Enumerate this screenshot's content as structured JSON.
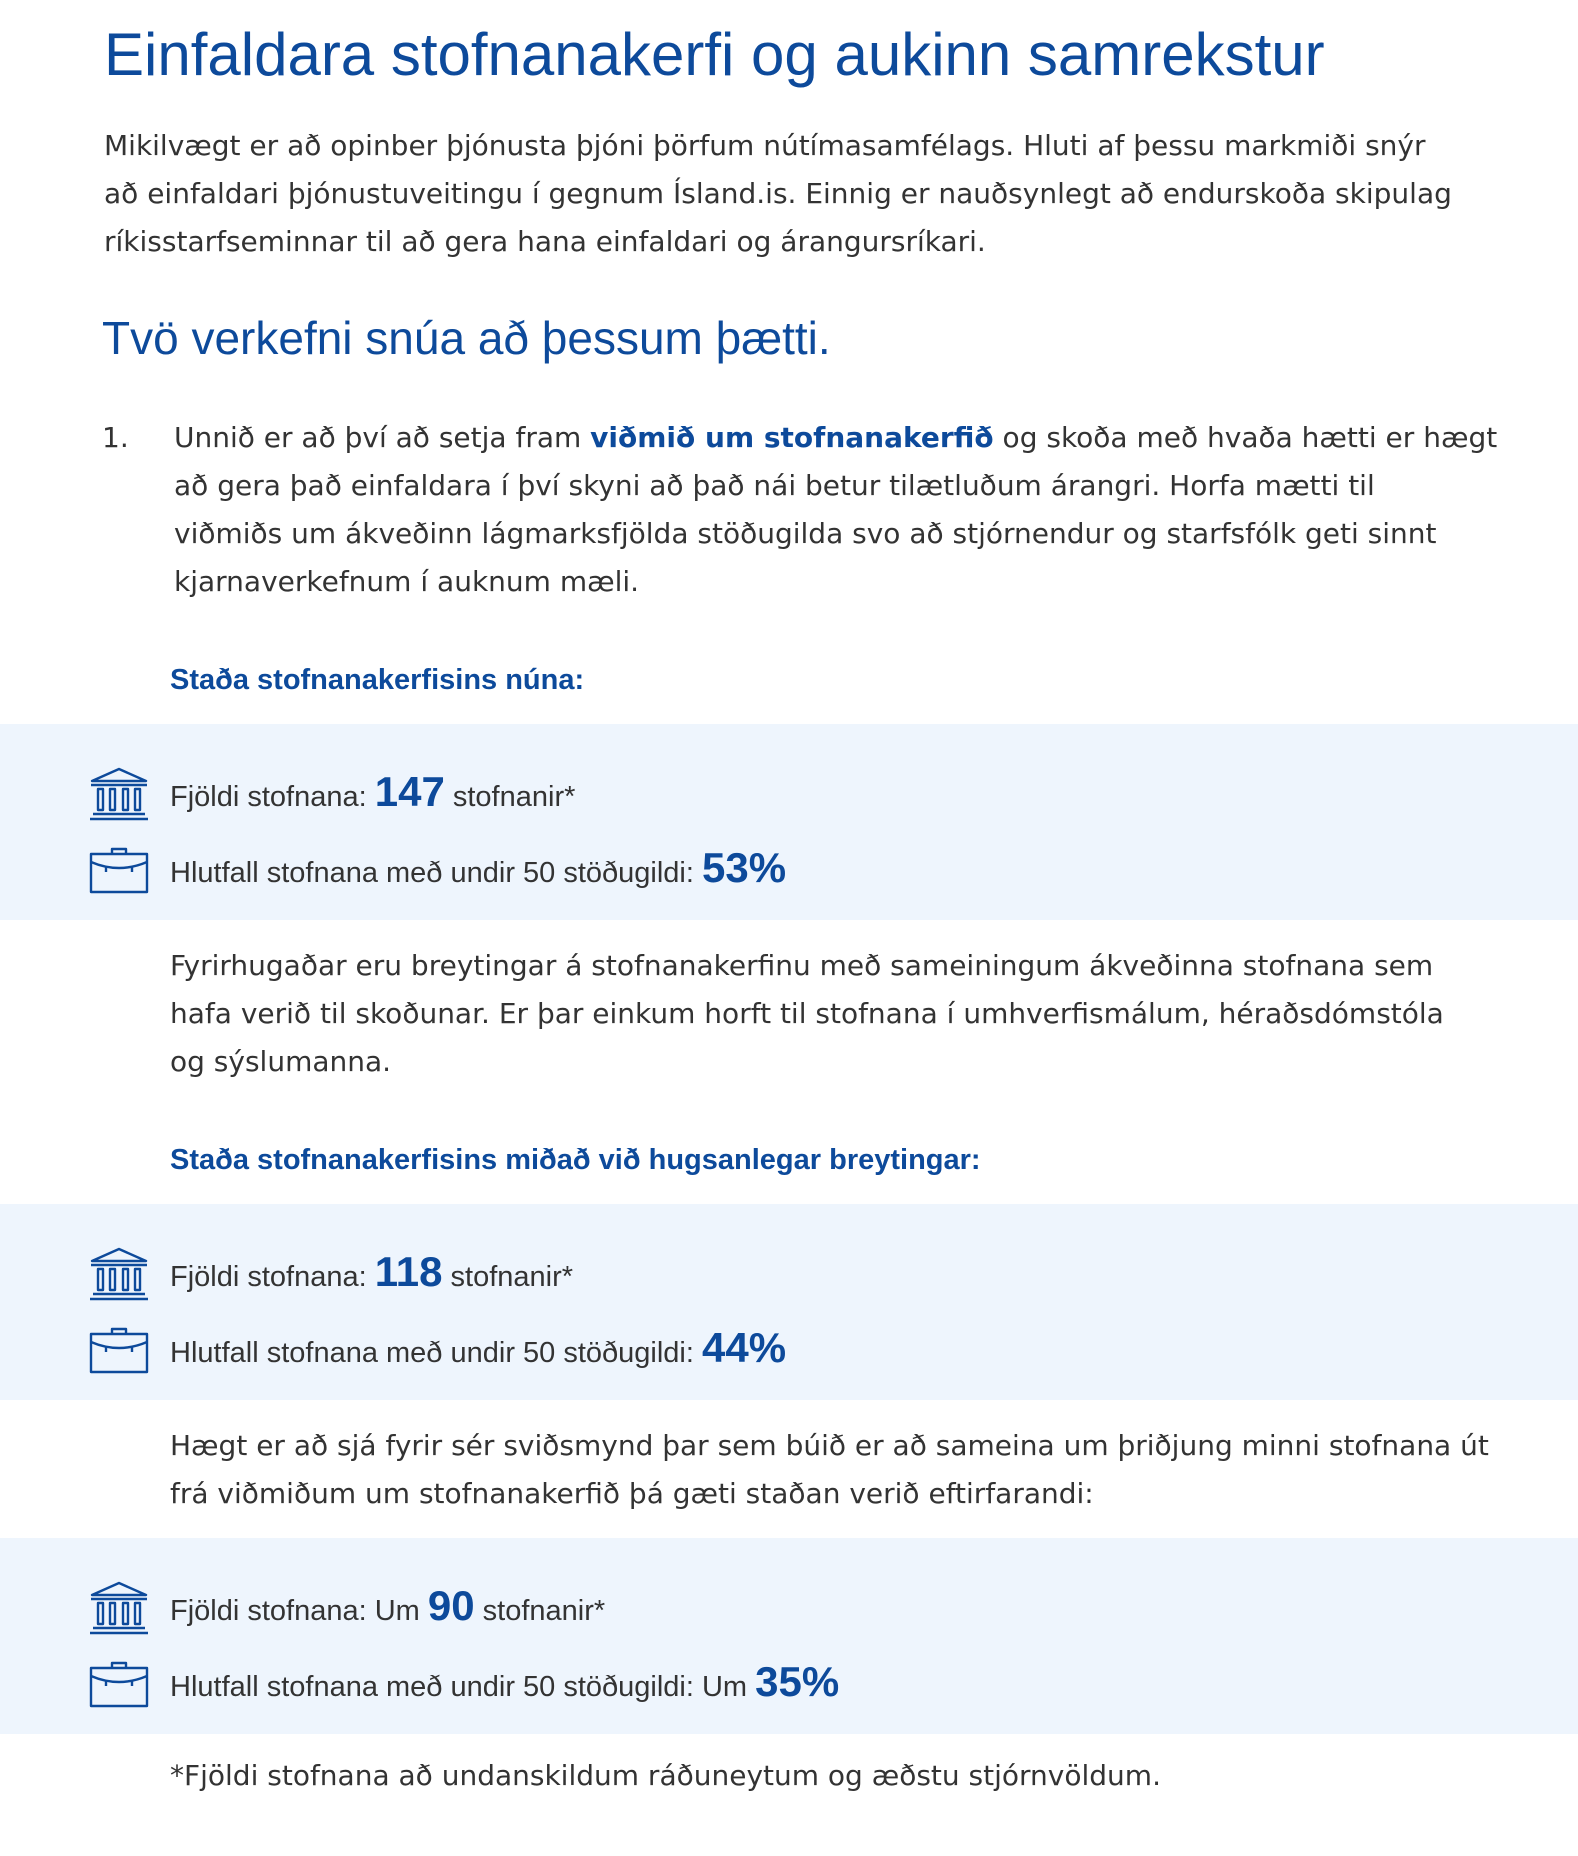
{
  "title": "Einfaldara stofnanakerfi og aukinn samrekstur",
  "intro": {
    "line1": "Mikilvægt er að opinber þjónusta þjóni þörfum nútímasamfélags. Hluti af þessu markmiði snýr",
    "line2": "að einfaldari þjónustuveitingu í gegnum Ísland.is. Einnig er nauðsynlegt að endurskoða skipulag",
    "line3": "ríkisstarfseminnar til að gera hana einfaldari og árangursríkari."
  },
  "subtitle": "Tvö verkefni snúa að þessum þætti.",
  "list": {
    "number": "1.",
    "line1_pre": "Unnið er að því að setja fram ",
    "link_text": "viðmið um stofnanakerfið",
    "line1_post": " og skoða með hvaða hætti er hægt",
    "line2": "að gera það einfaldara í því skyni að það nái betur tilætluðum árangri. Horfa mætti til",
    "line3": "viðmiðs um ákveðinn lágmarksfjölda stöðugilda svo að stjórnendur og starfsfólk geti sinnt",
    "line4": "kjarnaverkefnum í auknum mæli."
  },
  "section_current": {
    "heading": "Staða stofnanakerfisins núna:",
    "count_label": "Fjöldi stofnana: ",
    "count_prefix": "",
    "count_value": "147",
    "count_suffix": " stofnanir*",
    "ratio_label": "Hlutfall stofnana með undir 50 stöðugildi: ",
    "ratio_prefix": "",
    "ratio_value": "53%"
  },
  "paragraph_changes": {
    "line1": "Fyrirhugaðar eru breytingar á stofnanakerfinu með sameiningum ákveðinna stofnana sem",
    "line2": "hafa verið til skoðunar. Er þar einkum horft til stofnana í umhverfismálum, héraðsdómstóla",
    "line3": "og sýslumanna."
  },
  "section_changes": {
    "heading": "Staða stofnanakerfisins miðað við hugsanlegar breytingar:",
    "count_label": "Fjöldi stofnana: ",
    "count_prefix": "",
    "count_value": "118",
    "count_suffix": " stofnanir*",
    "ratio_label": "Hlutfall stofnana með undir 50 stöðugildi: ",
    "ratio_prefix": "",
    "ratio_value": "44%"
  },
  "paragraph_scenario": {
    "line1": "Hægt er að sjá fyrir sér sviðsmynd þar sem búið er að sameina um þriðjung minni stofnana út",
    "line2": "frá viðmiðum um stofnanakerfið þá gæti staðan verið eftirfarandi:"
  },
  "section_scenario": {
    "count_label": "Fjöldi stofnana: ",
    "count_prefix": "Um ",
    "count_value": "90",
    "count_suffix": " stofnanir*",
    "ratio_label": "Hlutfall stofnana með undir 50 stöðugildi: ",
    "ratio_prefix": "Um ",
    "ratio_value": "35%"
  },
  "footnote": "*Fjöldi stofnana að undanskildum ráðuneytum og æðstu stjórnvöldum.",
  "icons": {
    "institution": "institution-building-icon",
    "briefcase": "briefcase-icon"
  },
  "colors": {
    "accent": "#0d4a9b",
    "band": "#eef5fd",
    "text": "#333333"
  }
}
